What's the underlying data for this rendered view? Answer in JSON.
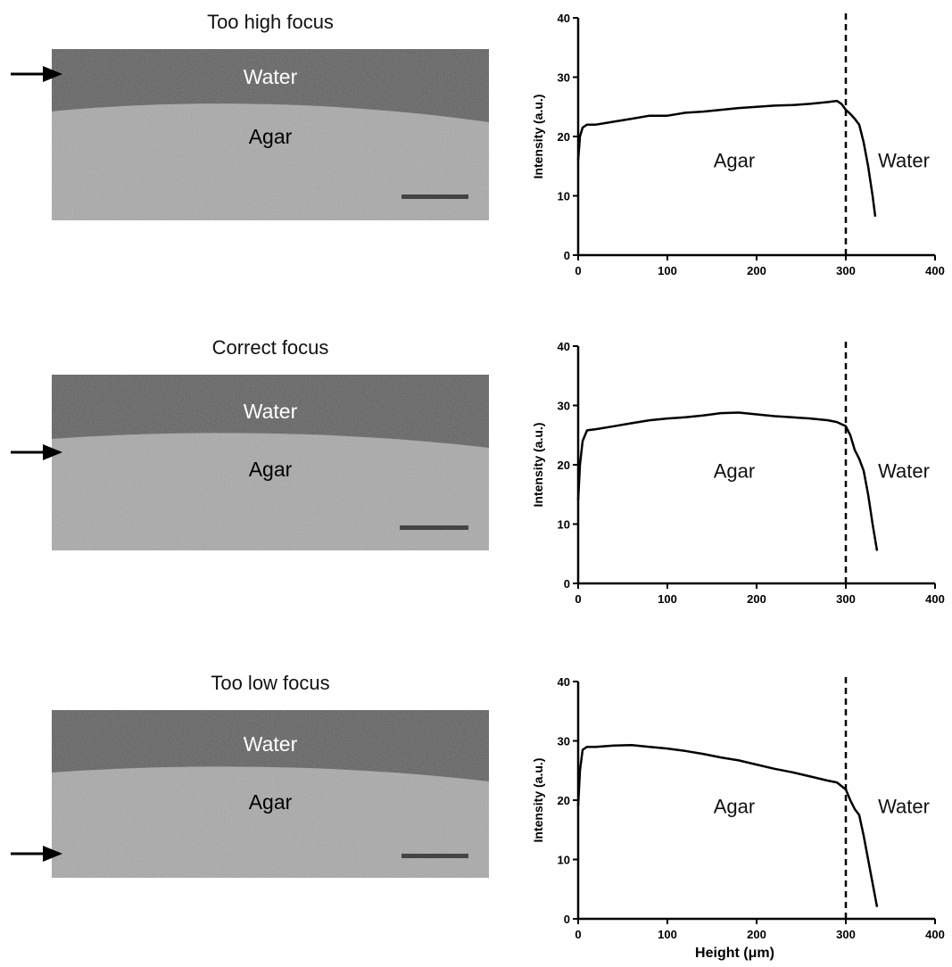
{
  "panels": [
    {
      "title": "Too high focus",
      "water_label": "Water",
      "agar_label": "Agar"
    },
    {
      "title": "Correct focus",
      "water_label": "Water",
      "agar_label": "Agar"
    },
    {
      "title": "Too low focus",
      "water_label": "Water",
      "agar_label": "Agar"
    }
  ],
  "colors": {
    "water": "#5a5a5a",
    "agar": "#a8a8a8",
    "line": "#000000"
  },
  "chart_data": [
    {
      "type": "line",
      "xlabel": "",
      "ylabel": "Intensity (a.u.)",
      "xlim": [
        0,
        400
      ],
      "ylim": [
        0,
        40
      ],
      "xticks": [
        0,
        100,
        200,
        300,
        400
      ],
      "yticks": [
        0,
        10,
        20,
        30,
        40
      ],
      "vline": 300,
      "annotations": [
        {
          "text": "Agar",
          "x": 175,
          "y": 16
        },
        {
          "text": "Water",
          "x": 365,
          "y": 16
        }
      ],
      "series": [
        {
          "x": [
            0,
            2,
            5,
            10,
            20,
            40,
            60,
            80,
            100,
            120,
            140,
            160,
            180,
            200,
            220,
            240,
            260,
            280,
            290,
            295,
            300,
            305,
            310,
            315,
            320,
            325,
            330,
            333
          ],
          "y": [
            16,
            20,
            21.5,
            22,
            22,
            22.5,
            23,
            23.5,
            23.5,
            24,
            24.2,
            24.5,
            24.8,
            25,
            25.2,
            25.3,
            25.5,
            25.8,
            26,
            25.5,
            24.5,
            23.8,
            23,
            22,
            19,
            15,
            10,
            6.5
          ]
        }
      ]
    },
    {
      "type": "line",
      "xlabel": "",
      "ylabel": "Intensity (a.u.)",
      "xlim": [
        0,
        400
      ],
      "ylim": [
        0,
        40
      ],
      "xticks": [
        0,
        100,
        200,
        300,
        400
      ],
      "yticks": [
        0,
        10,
        20,
        30,
        40
      ],
      "vline": 300,
      "annotations": [
        {
          "text": "Agar",
          "x": 175,
          "y": 19
        },
        {
          "text": "Water",
          "x": 365,
          "y": 19
        }
      ],
      "series": [
        {
          "x": [
            0,
            2,
            5,
            10,
            20,
            40,
            60,
            80,
            100,
            120,
            140,
            160,
            180,
            200,
            220,
            240,
            260,
            280,
            290,
            300,
            305,
            310,
            315,
            320,
            325,
            330,
            335
          ],
          "y": [
            14,
            20,
            24,
            25.8,
            26,
            26.5,
            27,
            27.5,
            27.8,
            28,
            28.3,
            28.7,
            28.8,
            28.5,
            28.2,
            28,
            27.8,
            27.5,
            27.2,
            26.5,
            25,
            22.5,
            21,
            19,
            15,
            10,
            5.5
          ]
        }
      ]
    },
    {
      "type": "line",
      "xlabel": "Height (μm)",
      "ylabel": "Intensity (a.u.)",
      "xlim": [
        0,
        400
      ],
      "ylim": [
        0,
        40
      ],
      "xticks": [
        0,
        100,
        200,
        300,
        400
      ],
      "yticks": [
        0,
        10,
        20,
        30,
        40
      ],
      "vline": 300,
      "annotations": [
        {
          "text": "Agar",
          "x": 175,
          "y": 19
        },
        {
          "text": "Water",
          "x": 365,
          "y": 19
        }
      ],
      "series": [
        {
          "x": [
            0,
            2,
            5,
            10,
            20,
            40,
            60,
            80,
            100,
            120,
            140,
            160,
            180,
            200,
            220,
            240,
            260,
            280,
            290,
            300,
            305,
            310,
            315,
            320,
            325,
            330,
            335
          ],
          "y": [
            19,
            25,
            28.5,
            29,
            29,
            29.2,
            29.3,
            29,
            28.7,
            28.3,
            27.8,
            27.2,
            26.7,
            26,
            25.3,
            24.7,
            24,
            23.3,
            23,
            21.8,
            20,
            18.5,
            17.5,
            14,
            10,
            6,
            2
          ]
        }
      ]
    }
  ]
}
